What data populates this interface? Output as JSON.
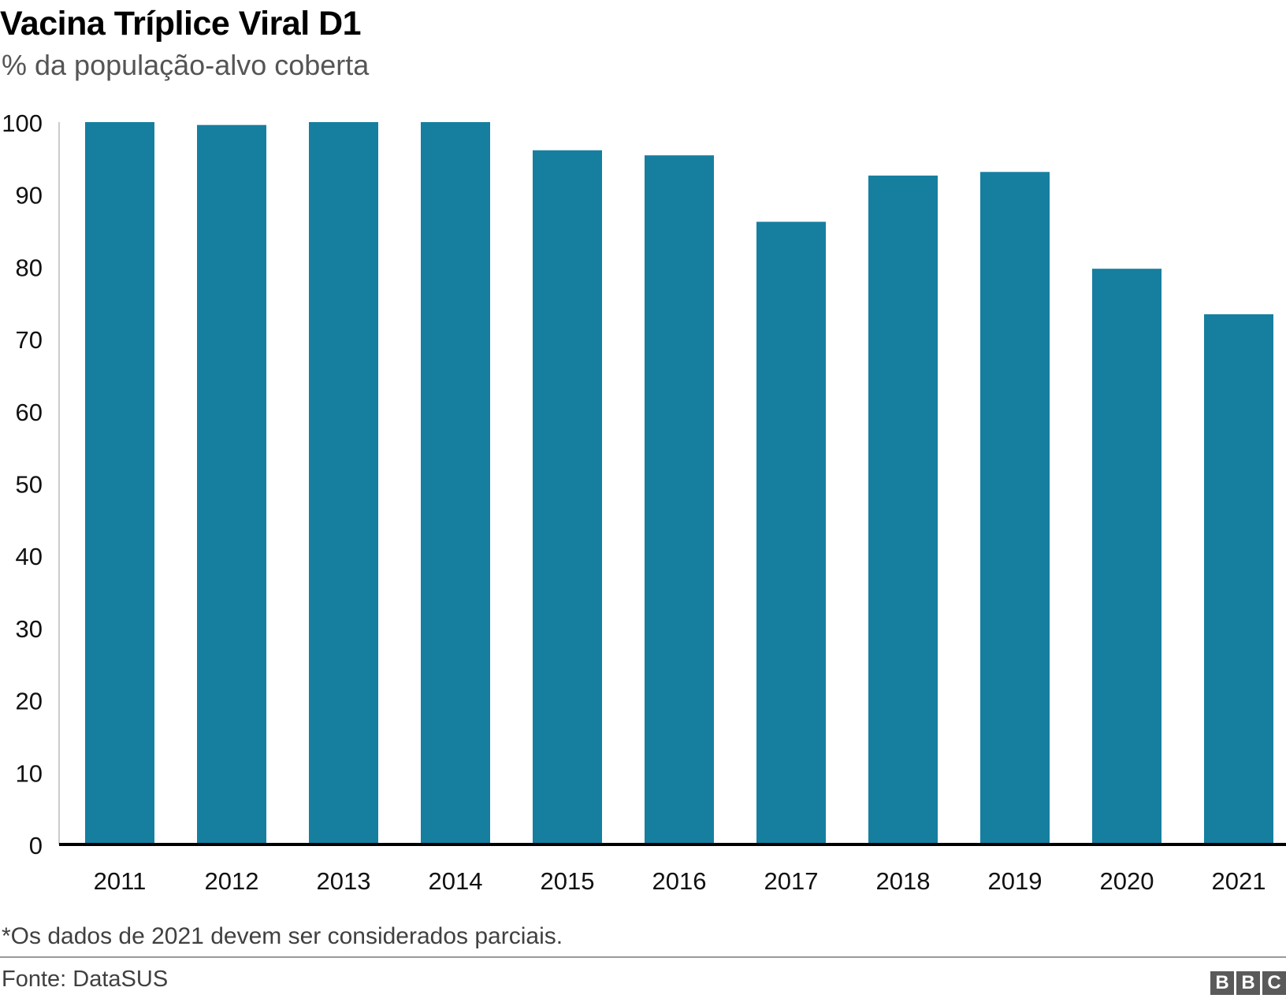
{
  "header": {
    "title": "Vacina Tríplice Viral D1",
    "subtitle": "% da população-alvo coberta"
  },
  "footnote": "*Os dados de 2021 devem ser considerados parciais.",
  "source": "Fonte: DataSUS",
  "logo": {
    "letters": [
      "B",
      "B",
      "C"
    ]
  },
  "colors": {
    "bar": "#167fa0",
    "axis": "#000000",
    "tick_text": "#111111"
  },
  "chart_data": {
    "type": "bar",
    "title": "Vacina Tríplice Viral D1",
    "subtitle": "% da população-alvo coberta",
    "xlabel": "",
    "ylabel": "",
    "categories": [
      "2011",
      "2012",
      "2013",
      "2014",
      "2015",
      "2016",
      "2017",
      "2018",
      "2019",
      "2020",
      "2021"
    ],
    "values": [
      100,
      99.6,
      100,
      100,
      96.1,
      95.4,
      86.2,
      92.6,
      93.1,
      79.7,
      73.4
    ],
    "ylim": [
      0,
      100
    ],
    "yticks": [
      0,
      10,
      20,
      30,
      40,
      50,
      60,
      70,
      80,
      90,
      100
    ],
    "grid": false,
    "legend": "none"
  }
}
